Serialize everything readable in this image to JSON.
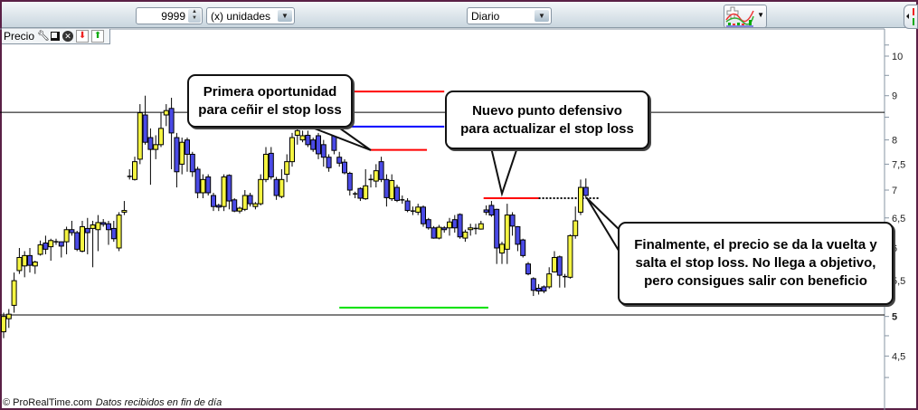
{
  "toolbar": {
    "quantity_value": "9999",
    "units_select": "(x) unidades",
    "timeframe_select": "Diario",
    "indicator_button_icon": "add-indicator-icon",
    "side_panel_icon": "side-arrows-icon"
  },
  "panel": {
    "title": "Precio",
    "icons": [
      "wrench-icon",
      "windows-icon",
      "close-icon",
      "move-down-icon",
      "move-up-icon"
    ]
  },
  "footer": {
    "copyright": "© ProRealTime.com",
    "data_note": "Datos recibidos en fin de día"
  },
  "annotations": {
    "first": "Primera oportunidad para ceñir el stop loss",
    "second": "Nuevo punto defensivo para actualizar el stop loss",
    "third": "Finalmente, el precio se da la vuelta y salta el stop loss. No llega a objetivo, pero consigues salir con beneficio"
  },
  "chart_data": {
    "type": "candlestick",
    "y_scale": "log",
    "ylim": [
      4.05,
      10.6
    ],
    "y_ticks": [
      "10",
      "9",
      "8",
      "7,5",
      "7",
      "6,5",
      "6",
      "5,5",
      "5",
      "4,5"
    ],
    "y_tick_values": [
      10,
      9,
      8,
      7.5,
      7,
      6.5,
      6,
      5.5,
      5,
      4.5
    ],
    "grid": false,
    "colors": {
      "up": "#f5f542",
      "down": "#4a4ae6",
      "wick": "#000000"
    },
    "candles_ohlc": [
      [
        4.8,
        5.05,
        4.72,
        5.0
      ],
      [
        4.97,
        5.1,
        4.85,
        5.03
      ],
      [
        5.15,
        5.62,
        5.05,
        5.5
      ],
      [
        5.65,
        6.0,
        5.6,
        5.85
      ],
      [
        5.72,
        5.95,
        5.55,
        5.88
      ],
      [
        5.88,
        6.0,
        5.62,
        5.73
      ],
      [
        5.72,
        5.8,
        5.6,
        5.78
      ],
      [
        5.9,
        6.12,
        5.88,
        6.05
      ],
      [
        6.08,
        6.2,
        5.9,
        5.98
      ],
      [
        6.02,
        6.15,
        5.8,
        6.12
      ],
      [
        6.1,
        6.15,
        6.05,
        6.1
      ],
      [
        6.1,
        6.1,
        5.85,
        6.03
      ],
      [
        6.1,
        6.35,
        5.9,
        6.3
      ],
      [
        6.3,
        6.45,
        6.2,
        6.25
      ],
      [
        6.25,
        6.28,
        5.95,
        5.98
      ],
      [
        5.95,
        6.45,
        5.93,
        6.35
      ],
      [
        6.32,
        6.5,
        5.9,
        6.25
      ],
      [
        6.32,
        6.45,
        5.7,
        6.38
      ],
      [
        6.3,
        6.55,
        5.95,
        6.42
      ],
      [
        6.42,
        6.48,
        6.35,
        6.39
      ],
      [
        6.4,
        6.45,
        6.05,
        6.3
      ],
      [
        6.32,
        6.45,
        6.1,
        6.15
      ],
      [
        6.0,
        6.6,
        5.95,
        6.55
      ],
      [
        6.6,
        6.8,
        6.55,
        6.63
      ],
      [
        7.26,
        7.4,
        7.2,
        7.26
      ],
      [
        7.2,
        7.65,
        7.18,
        7.55
      ],
      [
        7.6,
        8.8,
        7.5,
        8.6
      ],
      [
        8.55,
        9.0,
        7.9,
        7.95
      ],
      [
        8.05,
        8.25,
        7.1,
        7.8
      ],
      [
        7.8,
        8.1,
        7.6,
        7.9
      ],
      [
        7.9,
        8.6,
        7.85,
        8.25
      ],
      [
        8.55,
        8.8,
        8.3,
        8.65
      ],
      [
        8.7,
        8.95,
        7.4,
        8.15
      ],
      [
        8.05,
        8.15,
        7.05,
        7.35
      ],
      [
        7.5,
        8.05,
        7.3,
        7.95
      ],
      [
        8.0,
        8.05,
        7.35,
        7.7
      ],
      [
        7.7,
        7.75,
        7.25,
        7.35
      ],
      [
        7.4,
        7.45,
        6.85,
        6.95
      ],
      [
        6.95,
        7.3,
        6.85,
        7.2
      ],
      [
        7.25,
        7.3,
        6.9,
        6.95
      ],
      [
        6.9,
        6.95,
        6.62,
        6.7
      ],
      [
        6.72,
        6.75,
        6.62,
        6.69
      ],
      [
        6.7,
        7.3,
        6.62,
        7.25
      ],
      [
        7.28,
        7.3,
        6.65,
        6.8
      ],
      [
        6.82,
        6.85,
        6.6,
        6.62
      ],
      [
        6.62,
        6.7,
        6.58,
        6.67
      ],
      [
        6.65,
        7.0,
        6.62,
        6.9
      ],
      [
        6.9,
        6.95,
        6.7,
        6.75
      ],
      [
        6.7,
        6.78,
        6.65,
        6.75
      ],
      [
        6.75,
        7.3,
        6.72,
        7.2
      ],
      [
        7.2,
        7.85,
        7.15,
        7.7
      ],
      [
        7.72,
        7.85,
        7.2,
        7.25
      ],
      [
        7.2,
        7.25,
        6.82,
        6.9
      ],
      [
        6.88,
        7.4,
        6.85,
        7.2
      ],
      [
        7.3,
        7.7,
        7.15,
        7.55
      ],
      [
        7.55,
        8.15,
        7.45,
        8.05
      ],
      [
        8.1,
        8.3,
        7.9,
        8.2
      ],
      [
        8.0,
        8.2,
        7.95,
        8.09
      ],
      [
        8.1,
        8.2,
        7.85,
        7.9
      ],
      [
        8.0,
        8.05,
        7.75,
        7.8
      ],
      [
        8.09,
        8.15,
        7.6,
        7.71
      ],
      [
        7.9,
        8.0,
        7.45,
        7.64
      ],
      [
        7.64,
        7.7,
        7.35,
        7.43
      ],
      [
        8.09,
        8.15,
        7.7,
        7.78
      ],
      [
        7.64,
        7.75,
        7.45,
        7.52
      ],
      [
        7.54,
        7.6,
        7.3,
        7.33
      ],
      [
        7.32,
        7.35,
        6.9,
        7.0
      ],
      [
        6.93,
        6.97,
        6.85,
        6.92
      ],
      [
        7.03,
        7.05,
        6.8,
        6.85
      ],
      [
        6.84,
        7.4,
        6.82,
        7.08
      ],
      [
        7.2,
        7.3,
        7.05,
        7.2
      ],
      [
        7.17,
        7.5,
        7.05,
        7.37
      ],
      [
        7.55,
        7.65,
        7.15,
        7.2
      ],
      [
        7.2,
        7.3,
        6.7,
        6.86
      ],
      [
        6.84,
        7.3,
        6.8,
        7.18
      ],
      [
        7.05,
        7.1,
        6.78,
        6.81
      ],
      [
        6.82,
        6.9,
        6.75,
        6.81
      ],
      [
        6.8,
        6.85,
        6.6,
        6.63
      ],
      [
        6.62,
        6.7,
        6.55,
        6.62
      ],
      [
        6.6,
        6.75,
        6.55,
        6.69
      ],
      [
        6.69,
        6.72,
        6.35,
        6.4
      ],
      [
        6.47,
        6.5,
        6.3,
        6.33
      ],
      [
        6.33,
        6.36,
        6.15,
        6.16
      ],
      [
        6.16,
        6.38,
        6.14,
        6.34
      ],
      [
        6.33,
        6.36,
        6.25,
        6.3
      ],
      [
        6.33,
        6.5,
        6.2,
        6.43
      ],
      [
        6.47,
        6.55,
        6.25,
        6.33
      ],
      [
        6.56,
        6.58,
        6.15,
        6.18
      ],
      [
        6.16,
        6.3,
        6.1,
        6.26
      ],
      [
        6.3,
        6.4,
        6.2,
        6.33
      ],
      [
        6.32,
        6.4,
        6.22,
        6.32
      ],
      [
        6.31,
        6.45,
        6.3,
        6.4
      ],
      [
        6.64,
        6.72,
        6.55,
        6.6
      ],
      [
        6.72,
        6.8,
        6.52,
        6.55
      ],
      [
        6.65,
        6.66,
        5.75,
        6.0
      ],
      [
        5.92,
        6.1,
        5.75,
        6.06
      ],
      [
        5.98,
        6.75,
        5.75,
        6.55
      ],
      [
        6.55,
        6.6,
        6.2,
        6.36
      ],
      [
        6.35,
        6.36,
        5.95,
        6.06
      ],
      [
        6.13,
        6.15,
        5.85,
        5.88
      ],
      [
        5.75,
        5.78,
        5.58,
        5.6
      ],
      [
        5.53,
        5.55,
        5.28,
        5.36
      ],
      [
        5.39,
        5.45,
        5.3,
        5.35
      ],
      [
        5.41,
        5.43,
        5.32,
        5.35
      ],
      [
        5.41,
        5.7,
        5.38,
        5.6
      ],
      [
        5.63,
        5.95,
        5.62,
        5.85
      ],
      [
        5.86,
        5.88,
        5.4,
        5.58
      ],
      [
        5.56,
        5.6,
        5.4,
        5.56
      ],
      [
        5.55,
        6.22,
        5.53,
        6.2
      ],
      [
        6.2,
        6.7,
        6.15,
        6.45
      ],
      [
        6.6,
        7.2,
        6.55,
        7.05
      ],
      [
        7.05,
        7.22,
        6.85,
        6.9
      ]
    ],
    "horizontal_lines": [
      {
        "price": 8.61,
        "color": "#000000",
        "style": "solid",
        "span": "full"
      },
      {
        "price": 5.02,
        "color": "#000000",
        "style": "solid",
        "span": "full"
      },
      {
        "price": 9.1,
        "color": "#ff0000",
        "style": "solid",
        "from_bar": 66.5,
        "to_bar": 84
      },
      {
        "price": 8.29,
        "color": "#0000ff",
        "style": "solid",
        "from_bar": 60.5,
        "to_bar": 84
      },
      {
        "price": 7.79,
        "color": "#ff0000",
        "style": "solid",
        "from_bar": 70,
        "to_bar": 80.7
      },
      {
        "price": 5.12,
        "color": "#00e000",
        "style": "solid",
        "from_bar": 64,
        "to_bar": 92.4
      },
      {
        "price": 6.85,
        "color": "#ff0000",
        "style": "solid",
        "from_bar": 91.5,
        "to_bar": 102
      },
      {
        "price": 6.85,
        "color": "#000000",
        "style": "dotted",
        "from_bar": 102,
        "to_bar": 113.6
      }
    ]
  }
}
